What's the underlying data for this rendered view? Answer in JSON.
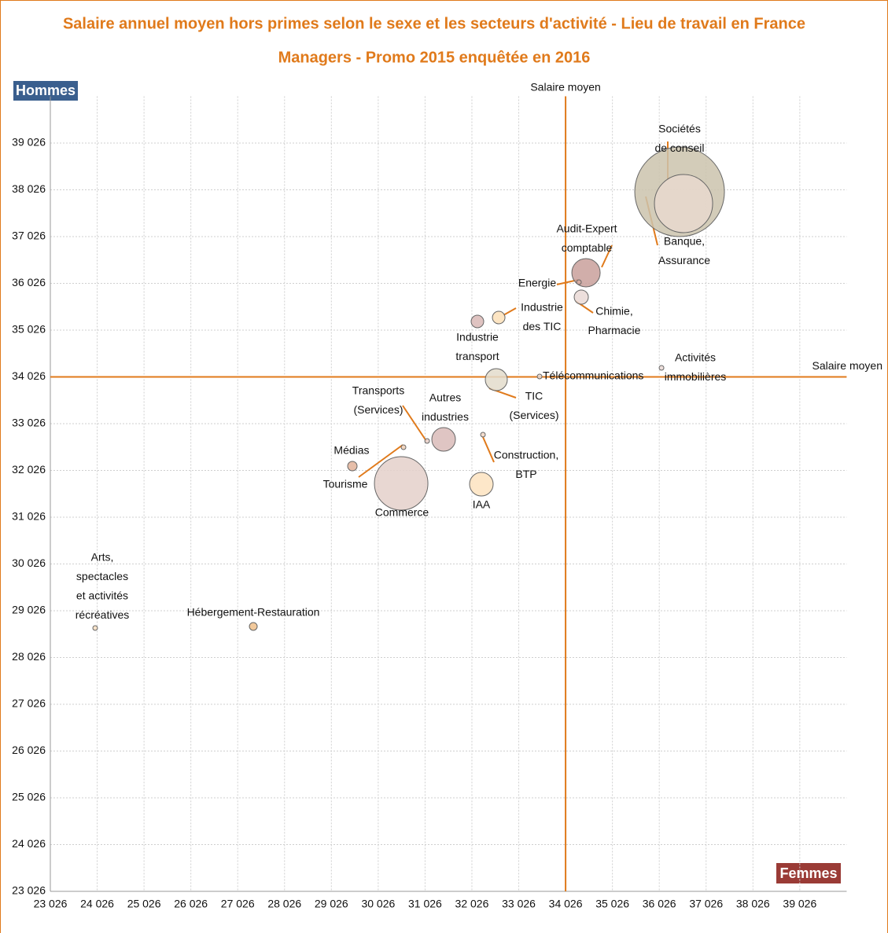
{
  "chart_data": {
    "type": "bubble",
    "title": "Salaire annuel moyen hors primes selon le sexe et les secteurs d'activité - Lieu de travail en France",
    "subtitle": "Managers - Promo 2015 enquêtée en 2016",
    "y_label": "Hommes",
    "x_label": "Femmes",
    "mean_label": "Salaire moyen",
    "mean_x": 34026,
    "mean_y": 34026,
    "labels": [
      [
        "Sociétés",
        "de conseil"
      ],
      [
        "Banque,",
        "Assurance"
      ],
      [
        "Audit-Expert",
        "comptable"
      ],
      [
        "Energie"
      ],
      [
        "Chimie,",
        "Pharmacie"
      ],
      [
        "Industrie",
        "des TIC"
      ],
      [
        "Industrie",
        "transport"
      ],
      [
        "TIC",
        "(Services)"
      ],
      [
        "Télécommunications"
      ],
      [
        "Activités",
        "immobilières"
      ],
      [
        "Autres",
        "industries"
      ],
      [
        "Transports",
        "(Services)"
      ],
      [
        "Construction,",
        "BTP"
      ],
      [
        "Médias"
      ],
      [
        "Tourisme"
      ],
      [
        "Commerce"
      ],
      [
        "IAA"
      ],
      [
        "Arts,",
        "spectacles",
        "et activités",
        "récréatives"
      ],
      [
        "Hébergement-Restauration"
      ]
    ],
    "x": [
      36460,
      36544,
      34462,
      34311,
      34361,
      32598,
      32144,
      32547,
      33471,
      36074,
      31422,
      31070,
      32262,
      29474,
      30566,
      30516,
      32228,
      23983,
      27359
    ],
    "y": [
      37984,
      37732,
      36253,
      36051,
      35732,
      35295,
      35211,
      33967,
      34034,
      34219,
      32690,
      32656,
      32791,
      32118,
      32522,
      31749,
      31732,
      28656,
      28690
    ],
    "size": [
      3249,
      1369,
      324,
      9,
      81,
      64,
      64,
      196,
      9,
      9,
      225,
      9,
      9,
      36,
      9,
      1156,
      225,
      9,
      25
    ],
    "colors": [
      "#cbc3ad",
      "#e8d8ce",
      "#c9a09b",
      "#d6a9a0",
      "#ead9d6",
      "#fde0b8",
      "#d9b8b6",
      "#e3dccb",
      "#e6d8d0",
      "#ead9d6",
      "#d9bbb8",
      "#e6cfc9",
      "#f0d6c4",
      "#e2b39a",
      "#f0cfb6",
      "#e4d0ca",
      "#fde3c0",
      "#f6ddc0",
      "#f0c08a"
    ],
    "xlim": [
      23026,
      40026
    ],
    "ylim": [
      23026,
      40026
    ],
    "xticks": [
      {
        "value": 23026,
        "label": "23 026"
      },
      {
        "value": 24026,
        "label": "24 026"
      },
      {
        "value": 25026,
        "label": "25 026"
      },
      {
        "value": 26026,
        "label": "26 026"
      },
      {
        "value": 27026,
        "label": "27 026"
      },
      {
        "value": 28026,
        "label": "28 026"
      },
      {
        "value": 29026,
        "label": "29 026"
      },
      {
        "value": 30026,
        "label": "30 026"
      },
      {
        "value": 31026,
        "label": "31 026"
      },
      {
        "value": 32026,
        "label": "32 026"
      },
      {
        "value": 33026,
        "label": "33 026"
      },
      {
        "value": 34026,
        "label": "34 026"
      },
      {
        "value": 35026,
        "label": "35 026"
      },
      {
        "value": 36026,
        "label": "36 026"
      },
      {
        "value": 37026,
        "label": "37 026"
      },
      {
        "value": 38026,
        "label": "38 026"
      },
      {
        "value": 39026,
        "label": "39 026"
      }
    ],
    "yticks": [
      {
        "value": 23026,
        "label": "23 026"
      },
      {
        "value": 24026,
        "label": "24 026"
      },
      {
        "value": 25026,
        "label": "25 026"
      },
      {
        "value": 26026,
        "label": "26 026"
      },
      {
        "value": 27026,
        "label": "27 026"
      },
      {
        "value": 28026,
        "label": "28 026"
      },
      {
        "value": 29026,
        "label": "29 026"
      },
      {
        "value": 30026,
        "label": "30 026"
      },
      {
        "value": 31026,
        "label": "31 026"
      },
      {
        "value": 32026,
        "label": "32 026"
      },
      {
        "value": 33026,
        "label": "33 026"
      },
      {
        "value": 34026,
        "label": "34 026"
      },
      {
        "value": 35026,
        "label": "35 026"
      },
      {
        "value": 36026,
        "label": "36 026"
      },
      {
        "value": 37026,
        "label": "37 026"
      },
      {
        "value": 38026,
        "label": "38 026"
      },
      {
        "value": 39026,
        "label": "39 026"
      }
    ],
    "grid": true,
    "accent_color": "#e07a1b"
  }
}
